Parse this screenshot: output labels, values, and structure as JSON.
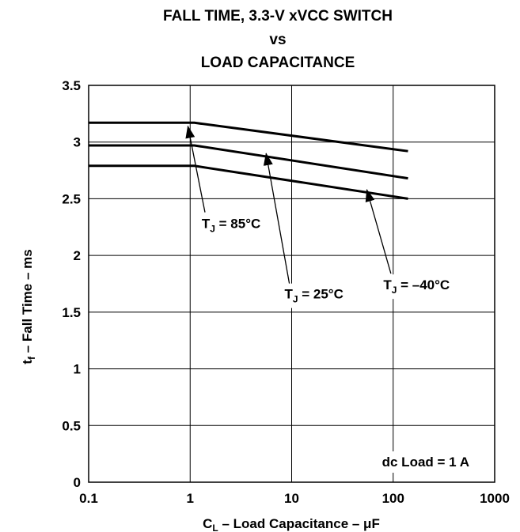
{
  "chart_data": {
    "type": "line",
    "title_lines": [
      "FALL TIME, 3.3-V xVCC SWITCH",
      "vs",
      "LOAD CAPACITANCE"
    ],
    "xlabel": {
      "main": "C",
      "sub": "L",
      "rest": " – Load Capacitance – μF"
    },
    "ylabel": {
      "main": "t",
      "sub": "f",
      "rest": "  – Fall Time – ms"
    },
    "x_scale": "log",
    "xlim": [
      0.1,
      1000
    ],
    "ylim": [
      0,
      3.5
    ],
    "x_ticks": [
      {
        "value": 0.1,
        "label": "0.1"
      },
      {
        "value": 1,
        "label": "1"
      },
      {
        "value": 10,
        "label": "10"
      },
      {
        "value": 100,
        "label": "100"
      },
      {
        "value": 1000,
        "label": "1000"
      }
    ],
    "y_ticks": [
      {
        "value": 0,
        "label": "0"
      },
      {
        "value": 0.5,
        "label": "0.5"
      },
      {
        "value": 1,
        "label": "1"
      },
      {
        "value": 1.5,
        "label": "1.5"
      },
      {
        "value": 2,
        "label": "2"
      },
      {
        "value": 2.5,
        "label": "2.5"
      },
      {
        "value": 3,
        "label": "3"
      },
      {
        "value": 3.5,
        "label": "3.5"
      }
    ],
    "grid": true,
    "series": [
      {
        "name_main": "T",
        "name_sub": "J",
        "name_rest": " = 85°C",
        "x": [
          0.1,
          1.1,
          140
        ],
        "y": [
          3.17,
          3.17,
          2.92
        ]
      },
      {
        "name_main": "T",
        "name_sub": "J",
        "name_rest": " = 25°C",
        "x": [
          0.1,
          1.1,
          140
        ],
        "y": [
          2.97,
          2.97,
          2.68
        ]
      },
      {
        "name_main": "T",
        "name_sub": "J",
        "name_rest": " = –40°C",
        "x": [
          0.1,
          1.1,
          140
        ],
        "y": [
          2.79,
          2.79,
          2.5
        ]
      }
    ],
    "annotations": [
      {
        "series": 0,
        "label_x": 1.3,
        "label_y": 2.24,
        "tip_x": 0.95,
        "tip_y": 3.14,
        "tail_x": 1.4,
        "tail_y": 2.38
      },
      {
        "series": 1,
        "label_x": 8.5,
        "label_y": 1.62,
        "tip_x": 5.6,
        "tip_y": 2.9,
        "tail_x": 9.5,
        "tail_y": 1.75
      },
      {
        "series": 2,
        "label_x": 80,
        "label_y": 1.7,
        "tip_x": 55,
        "tip_y": 2.58,
        "tail_x": 95,
        "tail_y": 1.84
      }
    ],
    "note": "dc Load = 1 A"
  }
}
